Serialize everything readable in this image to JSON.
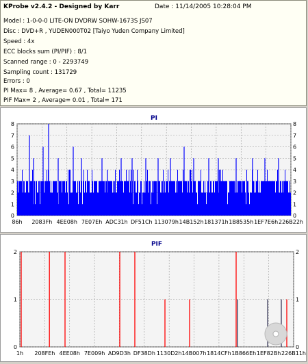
{
  "info": {
    "title": "KProbe v2.4.2 - Designed by Karr",
    "date": "Date : 11/14/2005 10:28:04 PM",
    "lines": [
      "Model : 1-0-0-0 LITE-ON DVDRW SOHW-1673S JS07",
      "Disc : DVD+R , YUDEN000T02 [Taiyo Yuden Company Limited]",
      "Speed : 4x",
      "ECC blocks sum (PI/PIF) : 8/1",
      "Scanned range : 0 - 2293749",
      "Sampling count : 131729",
      "Errors : 0",
      "PI Max= 8 , Average= 0.67 , Total= 11235",
      "PIF Max= 2 , Average= 0.01 , Total= 171"
    ]
  },
  "chart_data": [
    {
      "type": "bar",
      "title": "PI",
      "ylim": [
        0,
        8
      ],
      "yticks": [
        0,
        1,
        2,
        3,
        4,
        5,
        6,
        7,
        8
      ],
      "x_ticks": [
        "86h",
        "2083Fh",
        "4EE08h",
        "7E07Eh",
        "ADC31h",
        "DF51Ch",
        "113079h",
        "14B152h",
        "181371h",
        "1B8535h",
        "1EF7E6h",
        "226B22h"
      ],
      "grid": true,
      "colors": {
        "bars": "#0000ff",
        "grid": "#9a9a9a"
      },
      "typical_level": 2,
      "frequent_level": 3,
      "peaks": [
        {
          "pos": 0.115,
          "value": 8
        },
        {
          "pos": 0.045,
          "value": 7
        },
        {
          "pos": 0.095,
          "value": 6
        },
        {
          "pos": 0.06,
          "value": 5
        },
        {
          "pos": 0.15,
          "value": 5
        },
        {
          "pos": 0.205,
          "value": 6
        },
        {
          "pos": 0.235,
          "value": 5
        },
        {
          "pos": 0.31,
          "value": 5
        },
        {
          "pos": 0.33,
          "value": 4
        },
        {
          "pos": 0.38,
          "value": 5
        },
        {
          "pos": 0.42,
          "value": 5
        },
        {
          "pos": 0.47,
          "value": 5
        },
        {
          "pos": 0.515,
          "value": 5
        },
        {
          "pos": 0.56,
          "value": 5
        },
        {
          "pos": 0.61,
          "value": 6
        },
        {
          "pos": 0.645,
          "value": 5
        },
        {
          "pos": 0.7,
          "value": 5
        },
        {
          "pos": 0.735,
          "value": 5
        },
        {
          "pos": 0.8,
          "value": 5
        },
        {
          "pos": 0.86,
          "value": 5
        },
        {
          "pos": 0.905,
          "value": 5
        },
        {
          "pos": 0.955,
          "value": 5
        }
      ]
    },
    {
      "type": "bar",
      "title": "PIF",
      "ylim": [
        0,
        2
      ],
      "yticks": [
        0,
        1,
        2
      ],
      "x_ticks": [
        "1h",
        "208FEh",
        "4EE08h",
        "7E009h",
        "AD9D3h",
        "DF38Dh",
        "1130D2h",
        "14B007h",
        "1814CFh",
        "1B866Eh",
        "1EF82Bh",
        "226B11h"
      ],
      "grid": true,
      "colors": {
        "bars": "#ff0000",
        "secondary_bars": "#3a3a5a",
        "grid": "#9a9a9a"
      },
      "bars": [
        {
          "pos": 0.005,
          "value": 2,
          "secondary": false
        },
        {
          "pos": 0.108,
          "value": 2,
          "secondary": false
        },
        {
          "pos": 0.165,
          "value": 2,
          "secondary": false
        },
        {
          "pos": 0.365,
          "value": 2,
          "secondary": false
        },
        {
          "pos": 0.42,
          "value": 2,
          "secondary": false
        },
        {
          "pos": 0.53,
          "value": 1,
          "secondary": false
        },
        {
          "pos": 0.62,
          "value": 1,
          "secondary": false
        },
        {
          "pos": 0.79,
          "value": 2,
          "secondary": false
        },
        {
          "pos": 0.795,
          "value": 1,
          "secondary": true
        },
        {
          "pos": 0.905,
          "value": 1,
          "secondary": true
        },
        {
          "pos": 0.955,
          "value": 1,
          "secondary": true
        },
        {
          "pos": 0.975,
          "value": 1,
          "secondary": false
        }
      ]
    }
  ]
}
